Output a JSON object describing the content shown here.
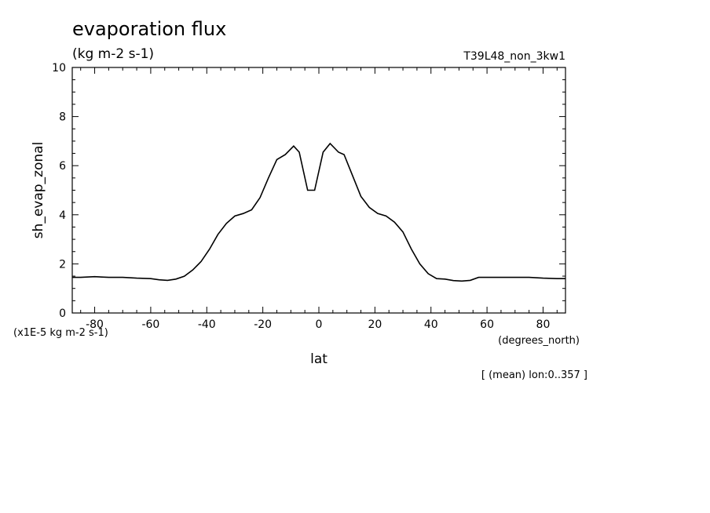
{
  "chart_data": {
    "type": "line",
    "title": "evaporation flux",
    "subtitle": "(kg m-2 s-1)",
    "run_label": "T39L48_non_3kw1",
    "xlabel": "lat",
    "x_units": "(degrees_north)",
    "ylabel": "sh_evap_zonal",
    "y_units": "(x1E-5 kg m-2 s-1)",
    "footnote": "[ (mean) lon:0..357 ]",
    "xlim": [
      -88,
      88
    ],
    "ylim": [
      0,
      10
    ],
    "x_ticks": [
      -80,
      -60,
      -40,
      -20,
      0,
      20,
      40,
      60,
      80
    ],
    "x_tick_labels": [
      "-80",
      "-60",
      "-40",
      "-20",
      "0",
      "20",
      "40",
      "60",
      "80"
    ],
    "y_ticks": [
      0,
      2,
      4,
      6,
      8,
      10
    ],
    "y_tick_labels": [
      "0",
      "2",
      "4",
      "6",
      "8",
      "10"
    ],
    "grid": false,
    "line_color": "#000000",
    "series": [
      {
        "x": [
          -88,
          -85,
          -80,
          -75,
          -70,
          -65,
          -60,
          -57,
          -54,
          -51,
          -48,
          -45,
          -42,
          -39,
          -36,
          -33,
          -30,
          -27,
          -24,
          -21,
          -18,
          -15,
          -12,
          -9,
          -7,
          -4,
          -1.5,
          1.5,
          4,
          7,
          9,
          12,
          15,
          18,
          21,
          24,
          27,
          30,
          33,
          36,
          39,
          42,
          45,
          48,
          51,
          54,
          57,
          60,
          62,
          65,
          70,
          75,
          80,
          85,
          88
        ],
        "y": [
          1.45,
          1.45,
          1.48,
          1.45,
          1.45,
          1.42,
          1.4,
          1.35,
          1.33,
          1.38,
          1.5,
          1.75,
          2.1,
          2.6,
          3.2,
          3.65,
          3.95,
          4.05,
          4.2,
          4.7,
          5.5,
          6.25,
          6.45,
          6.8,
          6.55,
          5.0,
          5.0,
          6.55,
          6.9,
          6.55,
          6.45,
          5.6,
          4.75,
          4.3,
          4.05,
          3.95,
          3.7,
          3.3,
          2.6,
          2.0,
          1.6,
          1.4,
          1.38,
          1.32,
          1.3,
          1.33,
          1.45,
          1.45,
          1.45,
          1.45,
          1.45,
          1.45,
          1.42,
          1.4,
          1.4
        ]
      }
    ]
  }
}
